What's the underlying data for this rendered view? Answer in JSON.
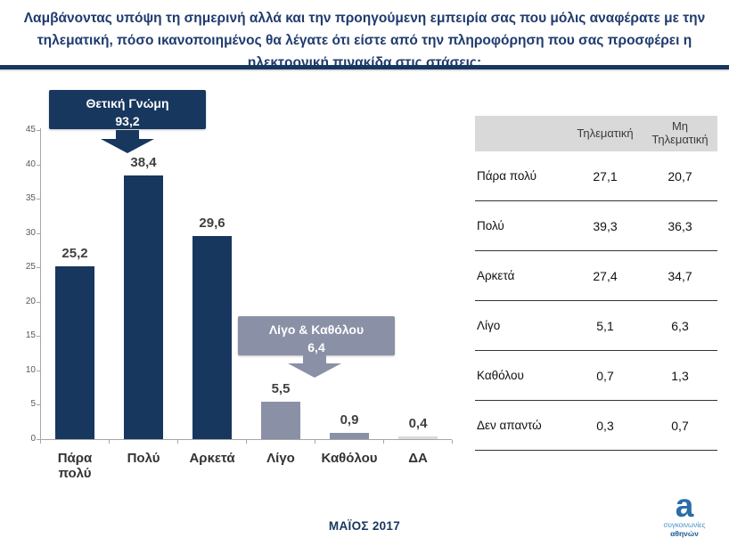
{
  "header": {
    "title": "Λαμβάνοντας υπόψη τη σημερινή αλλά και την προηγούμενη εμπειρία σας που μόλις αναφέρατε με την τηλεματική, πόσο ικανοποιημένος θα λέγατε ότι είστε από την πληροφόρηση που σας προσφέρει η ηλεκτρονική πινακίδα στις στάσεις;"
  },
  "chart_data": {
    "type": "bar",
    "title": "",
    "categories": [
      "Πάρα πολύ",
      "Πολύ",
      "Αρκετά",
      "Λίγο",
      "Καθόλου",
      "ΔΑ"
    ],
    "values": [
      25.2,
      38.4,
      29.6,
      5.5,
      0.9,
      0.4
    ],
    "value_labels": [
      "25,2",
      "38,4",
      "29,6",
      "5,5",
      "0,9",
      "0,4"
    ],
    "bar_colors": [
      "#17375E",
      "#17375E",
      "#17375E",
      "#8A90A6",
      "#8A90A6",
      "#D9D9DE"
    ],
    "xlabel": "",
    "ylabel": "",
    "ylim": [
      0,
      45
    ],
    "yticks": [
      0,
      5,
      10,
      15,
      20,
      25,
      30,
      35,
      40,
      45
    ],
    "grid": false,
    "legend": null,
    "annotations": [
      {
        "label": "Θετική Γνώμη",
        "value": "93,2",
        "color": "#17375E"
      },
      {
        "label": "Λίγο & Καθόλου",
        "value": "6,4",
        "color": "#8A90A6"
      }
    ]
  },
  "table": {
    "columns": [
      "Τηλεματική",
      "Μη Τηλεματική"
    ],
    "rows": [
      {
        "label": "Πάρα πολύ",
        "values": [
          "27,1",
          "20,7"
        ]
      },
      {
        "label": "Πολύ",
        "values": [
          "39,3",
          "36,3"
        ]
      },
      {
        "label": "Αρκετά",
        "values": [
          "27,4",
          "34,7"
        ]
      },
      {
        "label": "Λίγο",
        "values": [
          "5,1",
          "6,3"
        ]
      },
      {
        "label": "Καθόλου",
        "values": [
          "0,7",
          "1,3"
        ]
      },
      {
        "label": "Δεν απαντώ",
        "values": [
          "0,3",
          "0,7"
        ]
      }
    ]
  },
  "footer": {
    "date": "ΜΑΪΟΣ 2017",
    "logo": {
      "symbol": "a",
      "line1": "συγκοινωνίες",
      "line2": "αθηνών"
    }
  },
  "colors": {
    "navy": "#17375E",
    "gray_blue": "#8A90A6",
    "light_gray_bar": "#D9D9DE",
    "table_header_bg": "#D9D9D9",
    "title_navy": "#1F3B6E"
  }
}
